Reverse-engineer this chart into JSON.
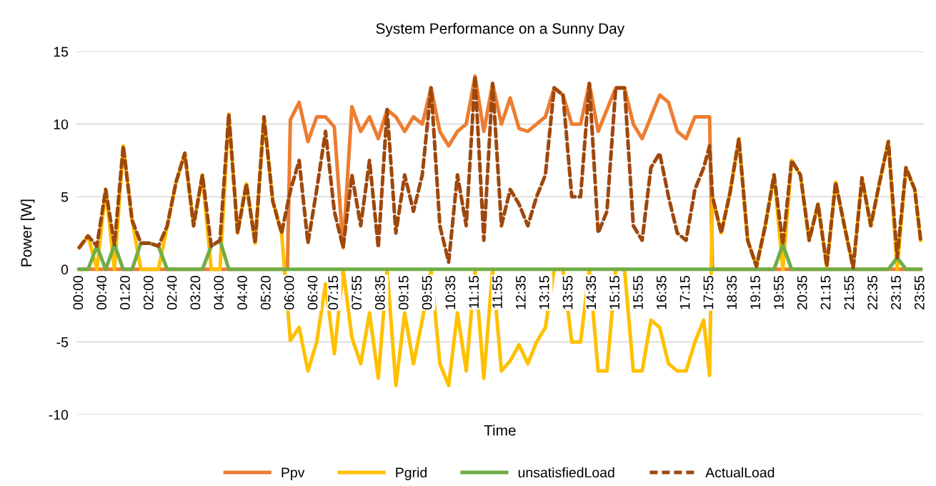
{
  "chart_data": {
    "type": "line",
    "title": "System Performance on a Sunny Day",
    "xlabel": "Time",
    "ylabel": "Power [W]",
    "x": [
      0,
      0.25,
      0.5,
      0.75,
      1,
      1.25,
      1.5,
      1.75,
      2,
      2.25,
      2.5,
      2.75,
      3,
      3.25,
      3.5,
      3.75,
      4,
      4.25,
      4.5,
      4.75,
      5,
      5.25,
      5.5,
      5.75,
      6,
      6.25,
      6.5,
      6.75,
      7,
      7.25,
      7.5,
      7.75,
      8,
      8.25,
      8.5,
      8.75,
      9,
      9.25,
      9.5,
      9.75,
      10,
      10.25,
      10.5,
      10.75,
      11,
      11.25,
      11.5,
      11.75,
      12,
      12.25,
      12.5,
      12.75,
      13,
      13.25,
      13.5,
      13.75,
      14,
      14.25,
      14.5,
      14.75,
      15,
      15.25,
      15.5,
      15.75,
      16,
      16.25,
      16.5,
      16.75,
      17,
      17.25,
      17.5,
      17.75,
      17.917,
      18,
      18.25,
      18.5,
      18.75,
      19,
      19.25,
      19.5,
      19.75,
      20,
      20.25,
      20.5,
      20.75,
      21,
      21.25,
      21.5,
      21.75,
      22,
      22.25,
      22.5,
      22.75,
      23,
      23.25,
      23.5,
      23.75,
      23.917
    ],
    "series": [
      {
        "name": "Ppv",
        "color": "#ed7d31",
        "line_style": "solid",
        "x": [
          0,
          5.917,
          6,
          6.25,
          6.5,
          6.75,
          7,
          7.25,
          7.5,
          7.75,
          8,
          8.25,
          8.5,
          8.75,
          9,
          9.25,
          9.5,
          9.75,
          10,
          10.25,
          10.5,
          10.75,
          11,
          11.25,
          11.5,
          11.75,
          12,
          12.25,
          12.5,
          12.75,
          13,
          13.25,
          13.5,
          13.75,
          14,
          14.25,
          14.5,
          14.75,
          15,
          15.25,
          15.5,
          15.75,
          16,
          16.25,
          16.5,
          16.75,
          17,
          17.25,
          17.5,
          17.75,
          17.917,
          18,
          23.917
        ],
        "values": [
          0,
          0,
          10.3,
          11.5,
          8.8,
          10.5,
          10.5,
          9.8,
          1.5,
          11.2,
          9.5,
          10.5,
          9.0,
          11.0,
          10.5,
          9.5,
          10.5,
          10.0,
          12.5,
          9.5,
          8.5,
          9.5,
          10.0,
          13.3,
          9.5,
          12.8,
          10.0,
          11.8,
          9.7,
          9.5,
          10.0,
          10.5,
          12.5,
          12.0,
          10.0,
          10.0,
          12.8,
          9.5,
          11.0,
          12.5,
          12.5,
          10.0,
          9.0,
          10.5,
          12.0,
          11.5,
          9.5,
          9.0,
          10.5,
          10.5,
          10.5,
          0,
          0
        ]
      },
      {
        "name": "Pgrid",
        "color": "#ffc000",
        "line_style": "solid",
        "values": [
          1.5,
          2.3,
          0,
          5.5,
          0,
          8.5,
          3.4,
          0,
          0,
          0,
          3.0,
          6.0,
          8.0,
          3.0,
          6.5,
          0,
          0,
          10.7,
          2.5,
          5.9,
          1.8,
          10.5,
          4.7,
          2.5,
          -4.9,
          -4.0,
          -7.0,
          -5.0,
          -1.0,
          -5.8,
          0,
          -4.7,
          -6.5,
          -3.0,
          -7.5,
          0,
          -8.0,
          -3.0,
          -6.5,
          -3.5,
          0,
          -6.5,
          -8.0,
          -3.0,
          -7.0,
          0,
          -7.5,
          0,
          -7.0,
          -6.3,
          -5.2,
          -6.5,
          -5.0,
          -4.0,
          0,
          0,
          -5.0,
          -5.0,
          0,
          -7.0,
          -7.0,
          0,
          0,
          -7.0,
          -7.0,
          -3.5,
          -4.0,
          -6.5,
          -7.0,
          -7.0,
          -5.0,
          -3.5,
          -7.3,
          5.0,
          2.5,
          5.3,
          9.0,
          2.0,
          0.2,
          3.0,
          6.5,
          0,
          7.5,
          6.5,
          2.0,
          4.5,
          0.2,
          6.0,
          3.0,
          0.1,
          6.3,
          3.0,
          6.0,
          8.8,
          0,
          7.0,
          5.5,
          2.0
        ]
      },
      {
        "name": "unsatisfiedLoad",
        "color": "#70ad47",
        "line_style": "solid",
        "x": [
          0,
          0.25,
          0.5,
          0.75,
          1,
          1.25,
          1.5,
          1.75,
          2,
          2.25,
          2.5,
          3.5,
          3.75,
          4,
          4.25,
          19.75,
          20,
          20.25,
          23,
          23.25,
          23.5,
          23.917
        ],
        "values": [
          0,
          0,
          1.6,
          0,
          1.7,
          0,
          0,
          1.8,
          1.8,
          1.6,
          0,
          0,
          1.6,
          2.0,
          0,
          0,
          1.7,
          0,
          0,
          0.8,
          0,
          0
        ]
      },
      {
        "name": "ActualLoad",
        "color": "#9e480e",
        "line_style": "dashed",
        "values": [
          1.5,
          2.3,
          1.6,
          5.5,
          1.7,
          8.5,
          3.4,
          1.8,
          1.8,
          1.6,
          3.0,
          6.0,
          8.0,
          3.0,
          6.5,
          1.6,
          2.0,
          10.7,
          2.5,
          5.9,
          1.8,
          10.5,
          4.7,
          2.5,
          5.4,
          7.5,
          1.8,
          5.5,
          9.5,
          4.0,
          1.5,
          6.5,
          3.0,
          7.5,
          1.5,
          11.0,
          2.5,
          6.5,
          4.0,
          6.5,
          12.5,
          3.0,
          0.5,
          6.5,
          3.0,
          13.3,
          2.0,
          12.8,
          3.0,
          5.5,
          4.5,
          3.0,
          5.0,
          6.5,
          12.5,
          12.0,
          5.0,
          5.0,
          12.8,
          2.5,
          4.0,
          12.5,
          12.5,
          3.0,
          2.0,
          7.0,
          8.0,
          5.0,
          2.5,
          2.0,
          5.5,
          7.0,
          8.5,
          5.0,
          2.5,
          5.3,
          9.0,
          2.0,
          0.2,
          3.0,
          6.5,
          1.7,
          7.5,
          6.5,
          2.0,
          4.5,
          0.2,
          6.0,
          3.0,
          0.1,
          6.3,
          3.0,
          6.0,
          8.8,
          0.8,
          7.0,
          5.5,
          2.0
        ]
      }
    ],
    "xlim": [
      -0.08,
      24.0
    ],
    "xticks": [
      {
        "value": 0,
        "label": "00:00"
      },
      {
        "value": 0.667,
        "label": "00:40"
      },
      {
        "value": 1.333,
        "label": "01:20"
      },
      {
        "value": 2,
        "label": "02:00"
      },
      {
        "value": 2.667,
        "label": "02:40"
      },
      {
        "value": 3.333,
        "label": "03:20"
      },
      {
        "value": 4,
        "label": "04:00"
      },
      {
        "value": 4.667,
        "label": "04:40"
      },
      {
        "value": 5.333,
        "label": "05:20"
      },
      {
        "value": 6,
        "label": "06:00"
      },
      {
        "value": 6.667,
        "label": "06:40"
      },
      {
        "value": 7.25,
        "label": "07:15"
      },
      {
        "value": 7.917,
        "label": "07:55"
      },
      {
        "value": 8.583,
        "label": "08:35"
      },
      {
        "value": 9.25,
        "label": "09:15"
      },
      {
        "value": 9.917,
        "label": "09:55"
      },
      {
        "value": 10.583,
        "label": "10:35"
      },
      {
        "value": 11.25,
        "label": "11:15"
      },
      {
        "value": 11.917,
        "label": "11:55"
      },
      {
        "value": 12.583,
        "label": "12:35"
      },
      {
        "value": 13.25,
        "label": "13:15"
      },
      {
        "value": 13.917,
        "label": "13:55"
      },
      {
        "value": 14.583,
        "label": "14:35"
      },
      {
        "value": 15.25,
        "label": "15:15"
      },
      {
        "value": 15.917,
        "label": "15:55"
      },
      {
        "value": 16.583,
        "label": "16:35"
      },
      {
        "value": 17.25,
        "label": "17:15"
      },
      {
        "value": 17.917,
        "label": "17:55"
      },
      {
        "value": 18.583,
        "label": "18:35"
      },
      {
        "value": 19.25,
        "label": "19:15"
      },
      {
        "value": 19.917,
        "label": "19:55"
      },
      {
        "value": 20.583,
        "label": "20:35"
      },
      {
        "value": 21.25,
        "label": "21:15"
      },
      {
        "value": 21.917,
        "label": "21:55"
      },
      {
        "value": 22.583,
        "label": "22:35"
      },
      {
        "value": 23.25,
        "label": "23:15"
      },
      {
        "value": 23.917,
        "label": "23:55"
      }
    ],
    "ylim": [
      -10,
      15
    ],
    "yticks": [
      -10,
      -5,
      0,
      5,
      10,
      15
    ],
    "grid": "y",
    "legend": "bottom"
  }
}
